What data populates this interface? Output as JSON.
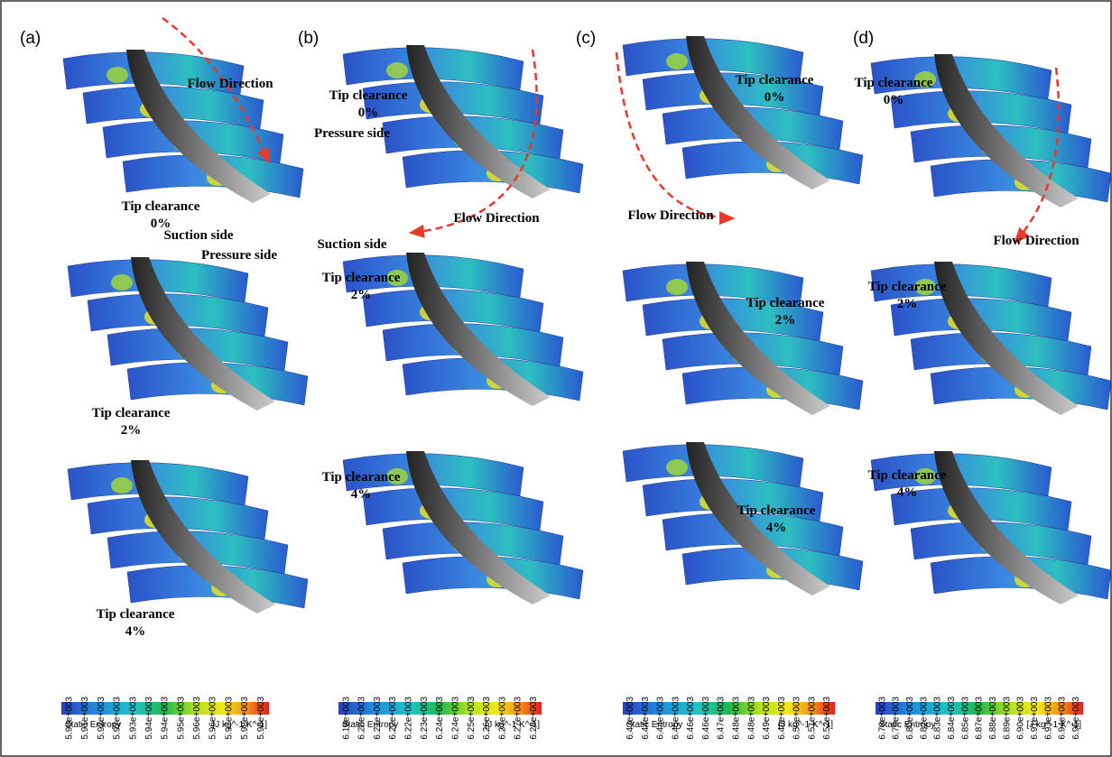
{
  "panels": [
    {
      "label": "(a)",
      "annotations": [
        {
          "lines": [
            "Flow Direction"
          ]
        },
        {
          "lines": [
            "Tip clearance",
            "0%"
          ]
        },
        {
          "lines": [
            "Suction side"
          ]
        },
        {
          "lines": [
            "Pressure side"
          ]
        },
        {
          "lines": [
            "Tip clearance",
            "2%"
          ]
        },
        {
          "lines": [
            "Tip clearance",
            "4%"
          ]
        }
      ],
      "colorbar": {
        "ticks": [
          "5.90e+003",
          "5.91e+003",
          "5.92e+003",
          "5.92e+003",
          "5.93e+003",
          "5.94e+003",
          "5.94e+003",
          "5.95e+003",
          "5.96e+003",
          "5.96e+003",
          "5.97e+003",
          "5.98e+003",
          "5.98e+003"
        ],
        "title": "Static Entropy",
        "unit": "[J kg^-1 K^-1]"
      }
    },
    {
      "label": "(b)",
      "annotations": [
        {
          "lines": [
            "Tip clearance",
            "0%"
          ]
        },
        {
          "lines": [
            "Pressure side"
          ]
        },
        {
          "lines": [
            "Flow Direction"
          ]
        },
        {
          "lines": [
            "Suction side"
          ]
        },
        {
          "lines": [
            "Tip clearance",
            "2%"
          ]
        },
        {
          "lines": [
            "Tip clearance",
            "4%"
          ]
        }
      ],
      "colorbar": {
        "ticks": [
          "6.19e+003",
          "6.20e+003",
          "6.21e+003",
          "6.22e+003",
          "6.22e+003",
          "6.23e+003",
          "6.24e+003",
          "6.24e+003",
          "6.25e+003",
          "6.26e+003",
          "6.27e+003",
          "6.27e+003",
          "6.28e+003"
        ],
        "title": "Static Entropy",
        "unit": "[J kg^-1 K^-1]"
      }
    },
    {
      "label": "(c)",
      "annotations": [
        {
          "lines": [
            "Tip clearance",
            "0%"
          ]
        },
        {
          "lines": [
            "Flow Direction"
          ]
        },
        {
          "lines": [
            "Tip clearance",
            "2%"
          ]
        },
        {
          "lines": [
            "Tip clearance",
            "4%"
          ]
        }
      ],
      "colorbar": {
        "ticks": [
          "6.43e+003",
          "6.44e+003",
          "6.44e+003",
          "6.45e+003",
          "6.46e+003",
          "6.46e+003",
          "6.47e+003",
          "6.48e+003",
          "6.48e+003",
          "6.49e+003",
          "6.49e+003",
          "6.50e+003",
          "6.51e+003",
          "6.52e+003"
        ],
        "title": "Static Entropy",
        "unit": "[J kg^-1 K^-1]"
      }
    },
    {
      "label": "(d)",
      "annotations": [
        {
          "lines": [
            "Tip clearance",
            "0%"
          ]
        },
        {
          "lines": [
            "Flow Direction"
          ]
        },
        {
          "lines": [
            "Tip clearance",
            "2%"
          ]
        },
        {
          "lines": [
            "Tip clearance",
            "4%"
          ]
        }
      ],
      "colorbar": {
        "ticks": [
          "6.78e+003",
          "6.79e+003",
          "6.80e+003",
          "6.82e+003",
          "6.83e+003",
          "6.84e+003",
          "6.85e+003",
          "6.87e+003",
          "6.88e+003",
          "6.89e+003",
          "6.90e+003",
          "6.91e+003",
          "6.93e+003",
          "6.94e+003",
          "6.95e+003"
        ],
        "title": "Static Entropy",
        "unit": "[J kg^-1 K^-1]"
      }
    }
  ]
}
